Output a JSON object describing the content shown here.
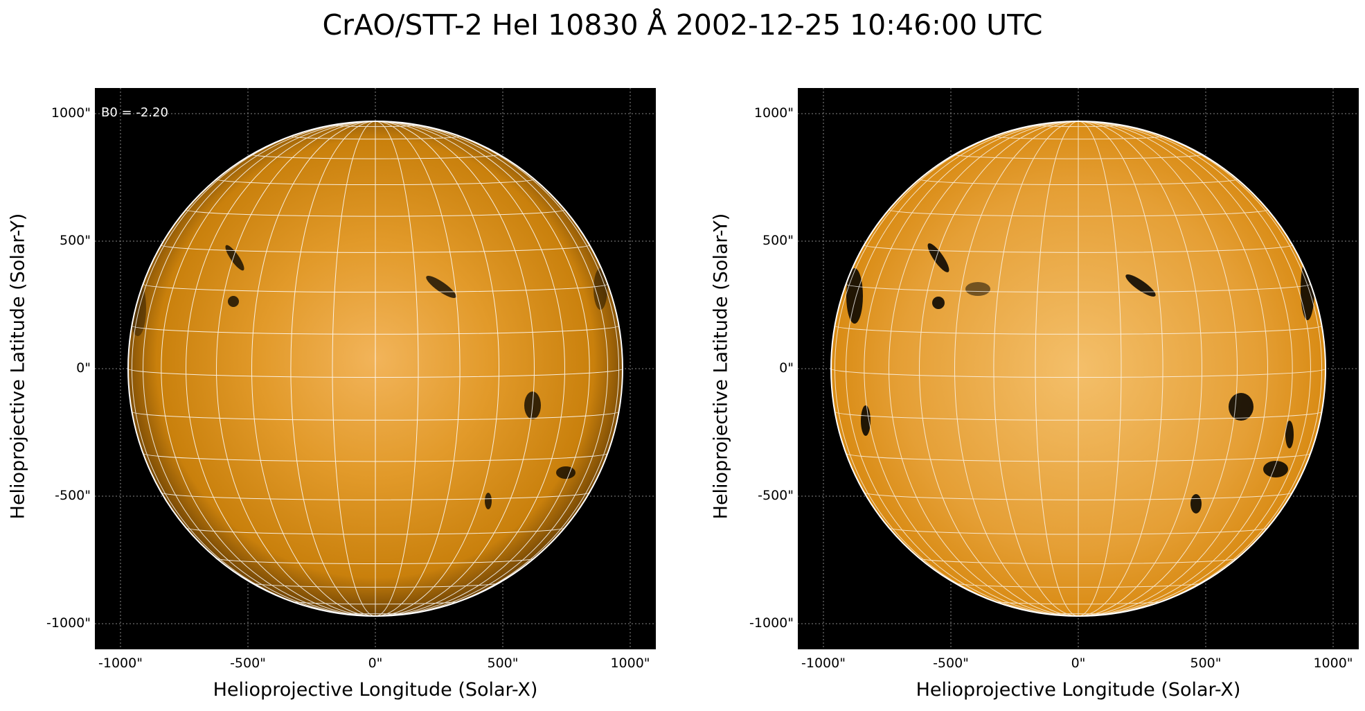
{
  "title": "CrAO/STT-2 HeI 10830 Å 2002-12-25 10:46:00 UTC",
  "annotation": "B0 = -2.20",
  "colors": {
    "disk": "#d98a12",
    "background": "#000000",
    "grid": "#ffffff"
  },
  "panels": [
    {
      "ylabel": "Helioprojective Latitude (Solar-Y)",
      "xlabel": "Helioprojective Longitude (Solar-X)",
      "yticks": [
        "1000\"",
        "500\"",
        "0\"",
        "-500\"",
        "-1000\""
      ],
      "xticks": [
        "-1000\"",
        "-500\"",
        "0\"",
        "500\"",
        "1000\""
      ]
    },
    {
      "ylabel": "Helioprojective Latitude (Solar-Y)",
      "xlabel": "Helioprojective Longitude (Solar-X)",
      "yticks": [
        "1000\"",
        "500\"",
        "0\"",
        "-500\"",
        "-1000\""
      ],
      "xticks": [
        "-1000\"",
        "-500\"",
        "0\"",
        "500\"",
        "1000\""
      ]
    }
  ]
}
